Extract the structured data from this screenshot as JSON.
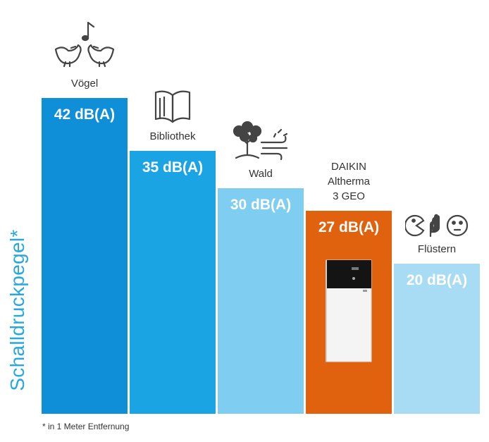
{
  "chart_data": {
    "type": "bar",
    "ylabel": "Schalldruckpegel*",
    "footnote": "* in 1 Meter Entfernung",
    "unit": "dB(A)",
    "ylim": [
      0,
      42
    ],
    "categories": [
      "Vögel",
      "Bibliothek",
      "Wald",
      "DAIKIN\nAltherma\n3 GEO",
      "Flüstern"
    ],
    "values": [
      42,
      35,
      30,
      27,
      20
    ],
    "value_labels": [
      "42 dB(A)",
      "35 dB(A)",
      "30 dB(A)",
      "27 dB(A)",
      "20 dB(A)"
    ],
    "bar_colors": [
      "#0f8fd8",
      "#1ba4e4",
      "#7fcdf0",
      "#e0620f",
      "#a8dcf5"
    ],
    "icons": [
      "birds-icon",
      "book-icon",
      "tree-wind-icon",
      "heat-pump-icon",
      "whisper-icon"
    ],
    "highlight": "DAIKIN\nAltherma\n3 GEO"
  }
}
